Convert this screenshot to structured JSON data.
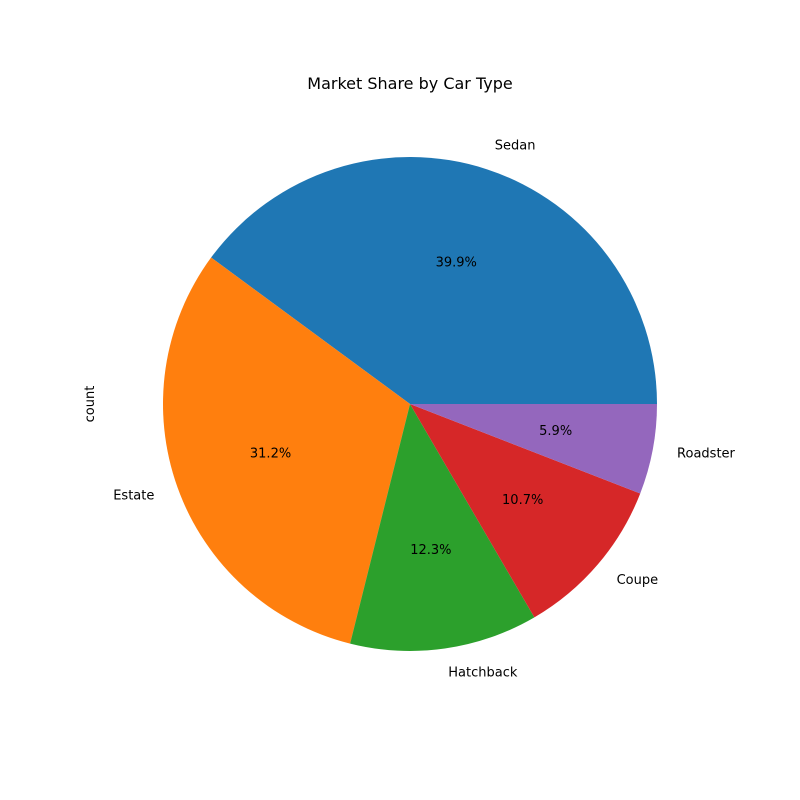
{
  "chart_data": {
    "type": "pie",
    "title": "Market Share by Car Type",
    "ylabel": "count",
    "start_angle_deg": 0,
    "direction": "counterclockwise",
    "slices": [
      {
        "label": "Sedan",
        "value": 39.9,
        "pct_label": "39.9%",
        "color": "#1f77b4"
      },
      {
        "label": "Estate",
        "value": 31.2,
        "pct_label": "31.2%",
        "color": "#ff7f0e"
      },
      {
        "label": "Hatchback",
        "value": 12.3,
        "pct_label": "12.3%",
        "color": "#2ca02c"
      },
      {
        "label": "Coupe",
        "value": 10.7,
        "pct_label": "10.7%",
        "color": "#d62728"
      },
      {
        "label": "Roadster",
        "value": 5.9,
        "pct_label": "5.9%",
        "color": "#9467bd"
      }
    ]
  }
}
